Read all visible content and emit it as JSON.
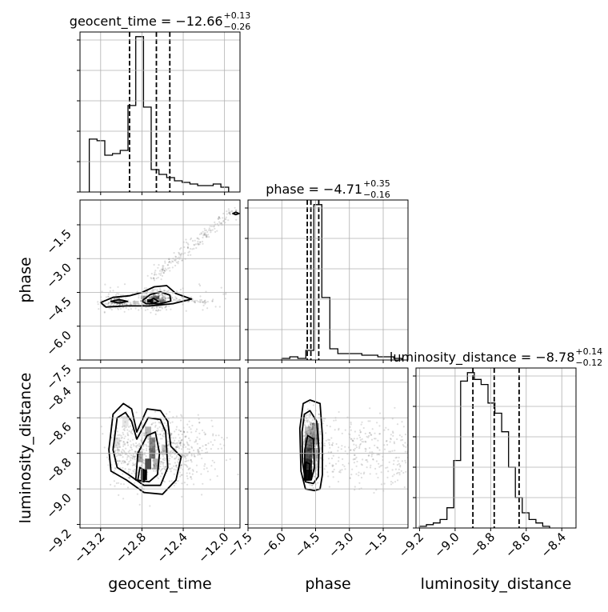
{
  "chart_data": {
    "type": "corner",
    "parameters": [
      "geocent_time",
      "phase",
      "luminosity_distance"
    ],
    "titles": [
      {
        "name": "geocent_time",
        "median": "−12.66",
        "plus": "+0.13",
        "minus": "−0.26"
      },
      {
        "name": "phase",
        "median": "−4.71",
        "plus": "+0.35",
        "minus": "−0.16"
      },
      {
        "name": "luminosity_distance",
        "median": "−8.78",
        "plus": "+0.14",
        "minus": "−0.12"
      }
    ],
    "equals": "=",
    "ranges": {
      "geocent_time": [
        -13.4,
        -11.85
      ],
      "phase": [
        -7.5,
        -0.4
      ],
      "luminosity_distance": [
        -9.22,
        -8.32
      ]
    },
    "ticks": {
      "geocent_time": {
        "values": [
          -13.2,
          -12.8,
          -12.4,
          -12.0
        ],
        "labels": [
          "−13.2",
          "−12.8",
          "−12.4",
          "−12.0"
        ]
      },
      "phase": {
        "values": [
          -7.5,
          -6.0,
          -4.5,
          -3.0,
          -1.5
        ],
        "labels": [
          "−7.5",
          "−6.0",
          "−4.5",
          "−3.0",
          "−1.5"
        ]
      },
      "luminosity_distance": {
        "values": [
          -9.2,
          -9.0,
          -8.8,
          -8.6,
          -8.4
        ],
        "labels": [
          "−9.2",
          "−9.0",
          "−8.8",
          "−8.6",
          "−8.4"
        ]
      }
    },
    "quantiles": {
      "geocent_time": [
        -12.92,
        -12.66,
        -12.53
      ],
      "phase": [
        -4.87,
        -4.71,
        -4.36
      ],
      "luminosity_distance": [
        -8.9,
        -8.78,
        -8.64
      ]
    },
    "histograms": {
      "geocent_time": {
        "edges_start": -13.31,
        "bin_width": 0.075,
        "values": [
          0.33,
          0.32,
          0.23,
          0.24,
          0.26,
          0.54,
          0.97,
          0.53,
          0.14,
          0.11,
          0.09,
          0.07,
          0.06,
          0.05,
          0.04,
          0.04,
          0.05,
          0.03
        ]
      },
      "phase": {
        "edges_start": -6.0,
        "bin_width": 0.355,
        "values": [
          0.01,
          0.02,
          0.01,
          0.06,
          0.97,
          0.39,
          0.07,
          0.04,
          0.04,
          0.04,
          0.03,
          0.03,
          0.02,
          0.02,
          0.01
        ]
      },
      "luminosity_distance": {
        "edges_start": -9.2,
        "bin_width": 0.0385,
        "values": [
          0.01,
          0.02,
          0.03,
          0.05,
          0.12,
          0.4,
          0.87,
          0.92,
          0.88,
          0.85,
          0.74,
          0.68,
          0.57,
          0.36,
          0.18,
          0.09,
          0.05,
          0.03,
          0.01
        ]
      }
    },
    "grid": true
  }
}
